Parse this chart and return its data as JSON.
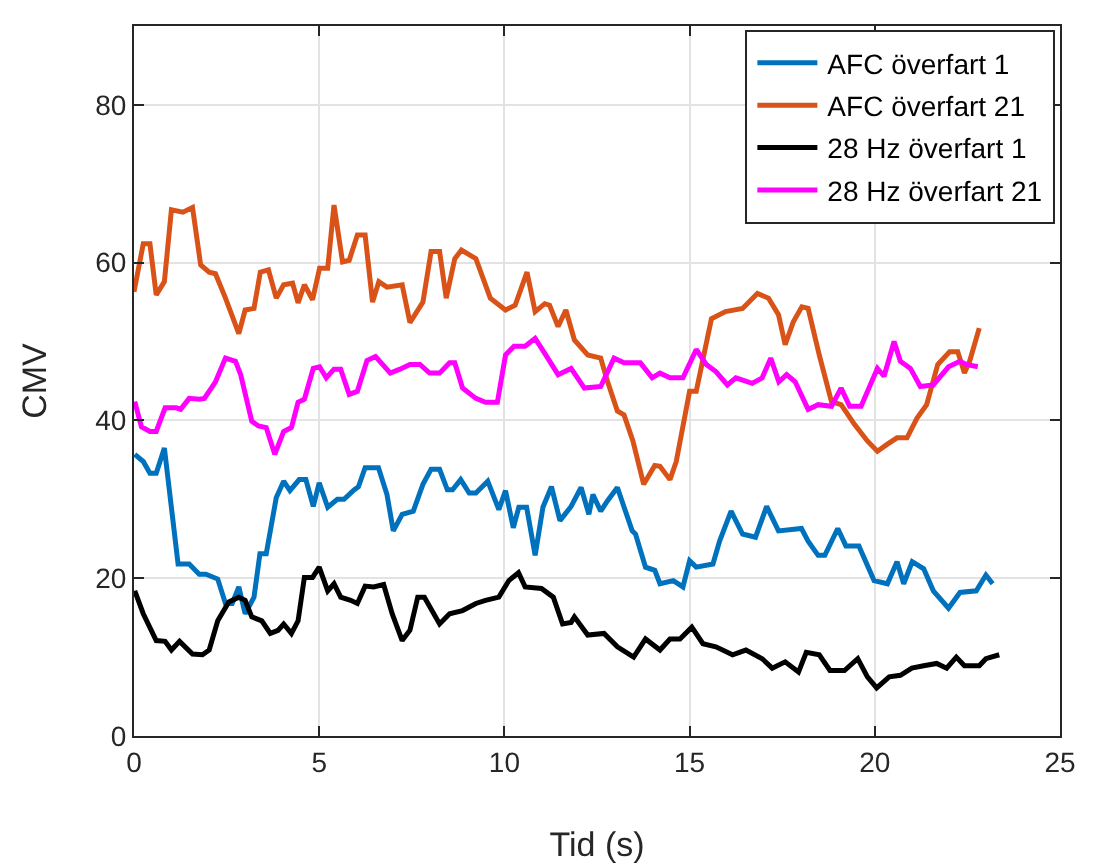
{
  "chart_data": {
    "type": "line",
    "xlabel": "Tid (s)",
    "ylabel": "CMV",
    "xlim": [
      0,
      25
    ],
    "ylim": [
      0,
      90
    ],
    "xticks": [
      0,
      5,
      10,
      15,
      20,
      25
    ],
    "yticks": [
      0,
      20,
      40,
      60,
      80
    ],
    "grid": true,
    "legend": "top right",
    "marker": "none",
    "line_style": "solid",
    "series": [
      {
        "name": "AFC överfart 1",
        "color": "#0072bd",
        "x": [
          0.02,
          0.25,
          0.43,
          0.6,
          0.82,
          1.19,
          1.49,
          1.76,
          1.94,
          2.26,
          2.47,
          2.65,
          2.83,
          3.0,
          3.24,
          3.4,
          3.57,
          3.84,
          4.04,
          4.21,
          4.46,
          4.64,
          4.84,
          5.0,
          5.23,
          5.49,
          5.67,
          5.94,
          6.06,
          6.24,
          6.6,
          6.83,
          7.0,
          7.24,
          7.54,
          7.8,
          8.02,
          8.25,
          8.46,
          8.6,
          8.82,
          9.05,
          9.23,
          9.55,
          9.85,
          10.03,
          10.24,
          10.39,
          10.6,
          10.83,
          11.04,
          11.27,
          11.5,
          11.8,
          12.07,
          12.28,
          12.39,
          12.6,
          12.78,
          13.05,
          13.45,
          13.54,
          13.81,
          14.06,
          14.2,
          14.56,
          14.82,
          15.0,
          15.18,
          15.63,
          15.81,
          16.12,
          16.43,
          16.78,
          17.08,
          17.4,
          18.02,
          18.2,
          18.47,
          18.65,
          19.0,
          19.22,
          19.57,
          19.98,
          20.34,
          20.6,
          20.78,
          21.01,
          21.32,
          21.58,
          21.99,
          22.3,
          22.74,
          23.0,
          23.18
        ],
        "values": [
          35.7,
          34.8,
          33.3,
          33.3,
          36.5,
          21.8,
          21.8,
          20.5,
          20.5,
          19.9,
          16.8,
          16.8,
          18.9,
          15.5,
          17.6,
          23.1,
          23.1,
          30.2,
          32.3,
          31.1,
          32.5,
          32.5,
          29.1,
          32.1,
          29,
          30,
          30,
          31.2,
          31.6,
          34,
          34,
          30.6,
          26,
          28.1,
          28.5,
          31.9,
          33.8,
          33.8,
          31.2,
          31.2,
          32.5,
          30.8,
          30.8,
          32.3,
          28.7,
          31.1,
          26.4,
          29,
          29,
          22.9,
          29,
          31.6,
          27.3,
          29.1,
          31.5,
          28.1,
          30.6,
          28.5,
          29.8,
          31.5,
          26,
          25.6,
          21.4,
          21,
          19.3,
          19.7,
          18.9,
          22.2,
          21.4,
          21.8,
          24.7,
          28.5,
          25.6,
          25.2,
          29.1,
          26,
          26.3,
          24.7,
          22.9,
          22.9,
          26.3,
          24.1,
          24.1,
          19.7,
          19.3,
          22.1,
          19.3,
          22.1,
          21.2,
          18.4,
          16.2,
          18.2,
          18.4,
          20.4,
          19.3
        ]
      },
      {
        "name": "AFC överfart 21",
        "color": "#d95319",
        "x": [
          0,
          0.25,
          0.43,
          0.6,
          0.82,
          1.01,
          1.32,
          1.58,
          1.8,
          2.03,
          2.2,
          2.47,
          2.83,
          3.0,
          3.24,
          3.41,
          3.63,
          3.84,
          4.04,
          4.28,
          4.43,
          4.6,
          4.82,
          5.01,
          5.23,
          5.4,
          5.63,
          5.81,
          6.03,
          6.24,
          6.44,
          6.61,
          6.83,
          7.24,
          7.45,
          7.8,
          8.02,
          8.25,
          8.43,
          8.66,
          8.84,
          9.23,
          9.62,
          10.03,
          10.29,
          10.61,
          10.83,
          11.09,
          11.22,
          11.45,
          11.66,
          11.89,
          12.25,
          12.6,
          12.78,
          13.05,
          13.23,
          13.47,
          13.76,
          14.06,
          14.2,
          14.47,
          14.64,
          15.0,
          15.18,
          15.59,
          15.97,
          16.43,
          16.83,
          17.13,
          17.4,
          17.58,
          17.8,
          18.03,
          18.2,
          18.5,
          18.83,
          19.09,
          19.45,
          19.8,
          20.07,
          20.34,
          20.6,
          20.87,
          21.14,
          21.4,
          21.7,
          22.02,
          22.24,
          22.42,
          22.56,
          22.82
        ],
        "values": [
          56.3,
          62.4,
          62.4,
          55.9,
          57.6,
          66.7,
          66.4,
          67,
          59.7,
          58.8,
          58.6,
          55.5,
          51,
          54,
          54.2,
          58.8,
          59.1,
          55.5,
          57.2,
          57.4,
          54.9,
          57.2,
          55.3,
          59.3,
          59.3,
          67.3,
          60.1,
          60.3,
          63.5,
          63.5,
          55,
          57.6,
          56.9,
          57.2,
          52.4,
          55,
          61.4,
          61.4,
          55.5,
          60.5,
          61.6,
          60.5,
          55.5,
          54,
          54.6,
          58.8,
          53.8,
          54.8,
          54.6,
          51.9,
          54,
          50.2,
          48.3,
          47.9,
          45,
          41.2,
          40.7,
          37.4,
          31.9,
          34.3,
          34.2,
          32.5,
          34.8,
          43.7,
          43.7,
          52.9,
          53.8,
          54.2,
          56.1,
          55.5,
          53.4,
          49.6,
          52.5,
          54.4,
          54.2,
          48.3,
          42.4,
          42,
          39.5,
          37.4,
          36.1,
          37,
          37.8,
          37.8,
          40.3,
          42,
          47.1,
          48.7,
          48.7,
          46,
          47.5,
          51.7
        ]
      },
      {
        "name": "28 Hz överfart 1",
        "color": "#000000",
        "x": [
          0.02,
          0.25,
          0.6,
          0.84,
          1.01,
          1.23,
          1.58,
          1.85,
          2.03,
          2.26,
          2.56,
          2.83,
          3.0,
          3.18,
          3.45,
          3.68,
          3.89,
          4.04,
          4.25,
          4.43,
          4.6,
          4.82,
          5.0,
          5.23,
          5.4,
          5.58,
          5.85,
          6.03,
          6.24,
          6.47,
          6.74,
          6.97,
          7.24,
          7.45,
          7.66,
          7.84,
          8.25,
          8.52,
          8.87,
          9.23,
          9.49,
          9.85,
          10.12,
          10.38,
          10.56,
          11.0,
          11.32,
          11.57,
          11.8,
          11.89,
          12.25,
          12.69,
          13.05,
          13.49,
          13.81,
          14.2,
          14.47,
          14.74,
          15.06,
          15.36,
          15.71,
          16.16,
          16.52,
          16.96,
          17.23,
          17.58,
          17.94,
          18.15,
          18.5,
          18.79,
          19.18,
          19.54,
          19.8,
          20.05,
          20.39,
          20.69,
          21.0,
          21.32,
          21.67,
          21.94,
          22.2,
          22.42,
          22.82,
          23.0,
          23.36
        ],
        "values": [
          18.4,
          15.5,
          12.1,
          12,
          10.9,
          12,
          10.4,
          10.3,
          10.9,
          14.6,
          17,
          17.6,
          17.2,
          15.1,
          14.6,
          13,
          13.4,
          14.2,
          13,
          14.6,
          20.1,
          20.1,
          21.4,
          18.4,
          19.3,
          17.6,
          17.2,
          16.8,
          19,
          18.9,
          19.2,
          15.5,
          12.1,
          13.4,
          17.6,
          17.6,
          14.2,
          15.5,
          15.9,
          16.8,
          17.2,
          17.6,
          19.7,
          20.7,
          18.9,
          18.7,
          17.6,
          14.2,
          14.4,
          15.1,
          12.8,
          13,
          11.3,
          10,
          12.3,
          10.9,
          12.3,
          12.3,
          13.8,
          11.7,
          11.3,
          10.3,
          10.9,
          9.8,
          8.6,
          9.4,
          8.1,
          10.6,
          10.3,
          8.3,
          8.3,
          9.8,
          7.5,
          6.1,
          7.5,
          7.7,
          8.6,
          8.9,
          9.2,
          8.6,
          10,
          8.9,
          8.9,
          9.8,
          10.3
        ]
      },
      {
        "name": "28 Hz överfart 21",
        "color": "#ff00ff",
        "x": [
          0.02,
          0.2,
          0.43,
          0.6,
          0.84,
          1.14,
          1.26,
          1.49,
          1.76,
          1.9,
          2.2,
          2.47,
          2.74,
          2.88,
          3.18,
          3.36,
          3.57,
          3.8,
          4.04,
          4.25,
          4.43,
          4.6,
          4.84,
          5.01,
          5.19,
          5.4,
          5.58,
          5.81,
          6.03,
          6.29,
          6.52,
          6.92,
          7.18,
          7.45,
          7.72,
          7.98,
          8.25,
          8.52,
          8.66,
          8.87,
          9.23,
          9.49,
          9.81,
          10.03,
          10.26,
          10.56,
          10.83,
          11.09,
          11.45,
          11.8,
          12.16,
          12.6,
          12.96,
          13.23,
          13.67,
          13.99,
          14.2,
          14.47,
          14.82,
          15.18,
          15.45,
          15.71,
          16.02,
          16.25,
          16.69,
          16.96,
          17.19,
          17.41,
          17.62,
          17.85,
          18.2,
          18.47,
          18.83,
          19.09,
          19.32,
          19.63,
          20.07,
          20.25,
          20.52,
          20.69,
          20.96,
          21.23,
          21.58,
          21.99,
          22.3,
          22.47,
          22.78
        ],
        "values": [
          42.4,
          39.2,
          38.6,
          38.6,
          41.6,
          41.6,
          41.4,
          42.8,
          42.7,
          42.8,
          44.9,
          47.9,
          47.5,
          45.8,
          39.9,
          39.3,
          39.1,
          35.7,
          38.6,
          39.1,
          42.3,
          42.7,
          46.6,
          46.8,
          45.4,
          46.5,
          46.5,
          43.3,
          43.7,
          47.6,
          48.1,
          46,
          46.5,
          47.1,
          47.1,
          46,
          46,
          47.3,
          47.3,
          44.1,
          42.8,
          42.3,
          42.3,
          48.3,
          49.4,
          49.4,
          50.4,
          48.5,
          45.8,
          46.6,
          44.1,
          44.3,
          47.9,
          47.3,
          47.3,
          45.4,
          46,
          45.4,
          45.4,
          49,
          47.1,
          46.2,
          44.5,
          45.4,
          44.7,
          45.4,
          47.9,
          44.9,
          45.8,
          44.9,
          41.4,
          42,
          41.8,
          44.1,
          41.8,
          41.8,
          46.6,
          45.6,
          50,
          47.5,
          46.6,
          44.3,
          44.5,
          46.8,
          47.5,
          47.1,
          46.8
        ]
      }
    ]
  }
}
